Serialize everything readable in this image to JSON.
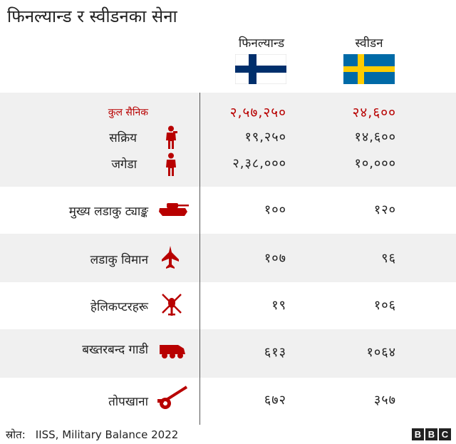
{
  "title": "फिनल्यान्ड र स्वीडनका सेना",
  "columns": {
    "finland": "फिनल्यान्ड",
    "sweden": "स्वीडन"
  },
  "source": {
    "label": "स्रोत:",
    "text": "IISS, Military Balance  2022"
  },
  "logo": [
    "B",
    "B",
    "C"
  ],
  "colors": {
    "accent": "#b80000",
    "band": "#f0f0f0",
    "finland_blue": "#002f6c",
    "sweden_blue": "#006aa7",
    "sweden_yellow": "#fecc00"
  },
  "chart_data": {
    "type": "table",
    "title": "फिनल्यान्ड र स्वीडनका सेना",
    "columns": [
      "फिनल्यान्ड",
      "स्वीडन"
    ],
    "rows": [
      {
        "label": "कुल सैनिक",
        "icon": "",
        "finland": "२,५७,२५०",
        "sweden": "२४,६००"
      },
      {
        "label": "सक्रिय",
        "icon": "soldier-icon",
        "finland": "१९,२५०",
        "sweden": "१४,६००"
      },
      {
        "label": "जगेडा",
        "icon": "reserve-soldier-icon",
        "finland": "२,३८,०००",
        "sweden": "१०,०००"
      },
      {
        "label": "मुख्य लडाकु ट्याङ्क",
        "icon": "tank-icon",
        "finland": "१००",
        "sweden": "१२०"
      },
      {
        "label": "लडाकु विमान",
        "icon": "fighter-jet-icon",
        "finland": "१०७",
        "sweden": "९६"
      },
      {
        "label": "हेलिकप्टरहरू",
        "icon": "helicopter-icon",
        "finland": "१९",
        "sweden": "१०६"
      },
      {
        "label": "बख्तरबन्द गाडी",
        "icon": "armoured-vehicle-icon",
        "finland": "६१३",
        "sweden": "१०६४"
      },
      {
        "label": "तोपखाना",
        "icon": "artillery-icon",
        "finland": "६७२",
        "sweden": "३५७"
      }
    ]
  }
}
